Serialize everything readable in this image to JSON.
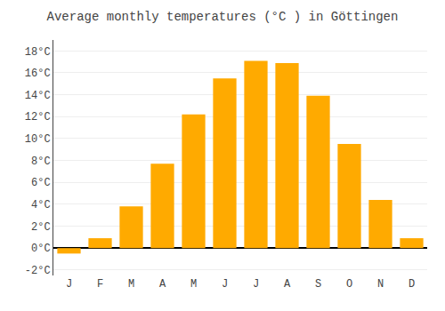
{
  "chart_data": {
    "type": "bar",
    "title": "Average monthly temperatures (°C ) in Göttingen",
    "categories": [
      "J",
      "F",
      "M",
      "A",
      "M",
      "J",
      "J",
      "A",
      "S",
      "O",
      "N",
      "D"
    ],
    "values": [
      -0.5,
      0.9,
      3.8,
      7.7,
      12.2,
      15.5,
      17.1,
      16.9,
      13.9,
      9.5,
      4.4,
      0.9
    ],
    "color": "#FFAA00",
    "ylim": [
      -2.5,
      19
    ],
    "yticks": [
      {
        "value": -2,
        "label": "-2°C"
      },
      {
        "value": 0,
        "label": "0°C"
      },
      {
        "value": 2,
        "label": "2°C"
      },
      {
        "value": 4,
        "label": "4°C"
      },
      {
        "value": 6,
        "label": "6°C"
      },
      {
        "value": 8,
        "label": "8°C"
      },
      {
        "value": 10,
        "label": "10°C"
      },
      {
        "value": 12,
        "label": "12°C"
      },
      {
        "value": 14,
        "label": "14°C"
      },
      {
        "value": 16,
        "label": "16°C"
      },
      {
        "value": 18,
        "label": "18°C"
      }
    ],
    "grid": true
  }
}
